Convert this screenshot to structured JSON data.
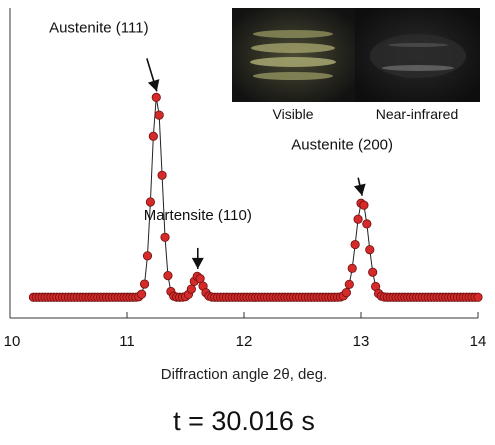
{
  "chart_data": {
    "type": "scatter",
    "title": "",
    "xlabel": "Diffraction angle 2θ, deg.",
    "ylabel": "",
    "xlim": [
      10,
      14
    ],
    "ylim": [
      0,
      1
    ],
    "x_ticks": [
      "10",
      "11",
      "12",
      "13",
      "14"
    ],
    "grid": false,
    "legend": "none",
    "series_color": "#d42a2a",
    "series_edge_color": "#6e1010",
    "line_color": "#222222",
    "x_start": 10.2,
    "x_end": 14.0,
    "x_step": 0.025,
    "baseline": 0.015,
    "peaks": [
      {
        "center": 11.255,
        "amplitude": 0.81,
        "width": 0.045
      },
      {
        "center": 11.605,
        "amplitude": 0.085,
        "width": 0.04
      },
      {
        "center": 13.01,
        "amplitude": 0.385,
        "width": 0.055
      }
    ],
    "annotations": [
      {
        "text": "Austenite (111)",
        "x": 11.255,
        "y": 0.82
      },
      {
        "text": "Martensite (110)",
        "x": 11.605,
        "y": 0.105
      },
      {
        "text": "Austenite (200)",
        "x": 13.01,
        "y": 0.4
      }
    ]
  },
  "inset": {
    "visible_label": "Visible",
    "near_infrared_label": "Near-infrared"
  },
  "caption": "t = 30.016 s"
}
